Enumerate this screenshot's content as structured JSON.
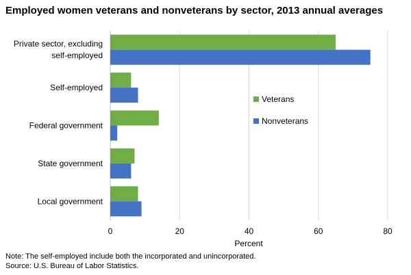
{
  "title": "Employed women veterans and nonveterans by sector, 2013 annual averages",
  "note": "Note: The self-employed  include both the incorporated and unincorporated.",
  "source": "Source:  U.S. Bureau of Labor Statistics.",
  "chart_data": {
    "type": "bar",
    "orientation": "horizontal",
    "title": "Employed women veterans and nonveterans by sector, 2013 annual averages",
    "xlabel": "Percent",
    "ylabel": "",
    "xlim": [
      0,
      80
    ],
    "xticks": [
      0,
      20,
      40,
      60,
      80
    ],
    "grid": true,
    "legend_position": "right",
    "categories": [
      [
        "Private sector, excluding",
        "self-employed"
      ],
      [
        "Self-employed"
      ],
      [
        "Federal government"
      ],
      [
        "State government"
      ],
      [
        "Local government"
      ]
    ],
    "series": [
      {
        "name": "Veterans",
        "color": "#70ad47",
        "values": [
          65,
          6,
          14,
          7,
          8
        ]
      },
      {
        "name": "Nonveterans",
        "color": "#4472c4",
        "values": [
          75,
          8,
          2,
          6,
          9
        ]
      }
    ]
  }
}
